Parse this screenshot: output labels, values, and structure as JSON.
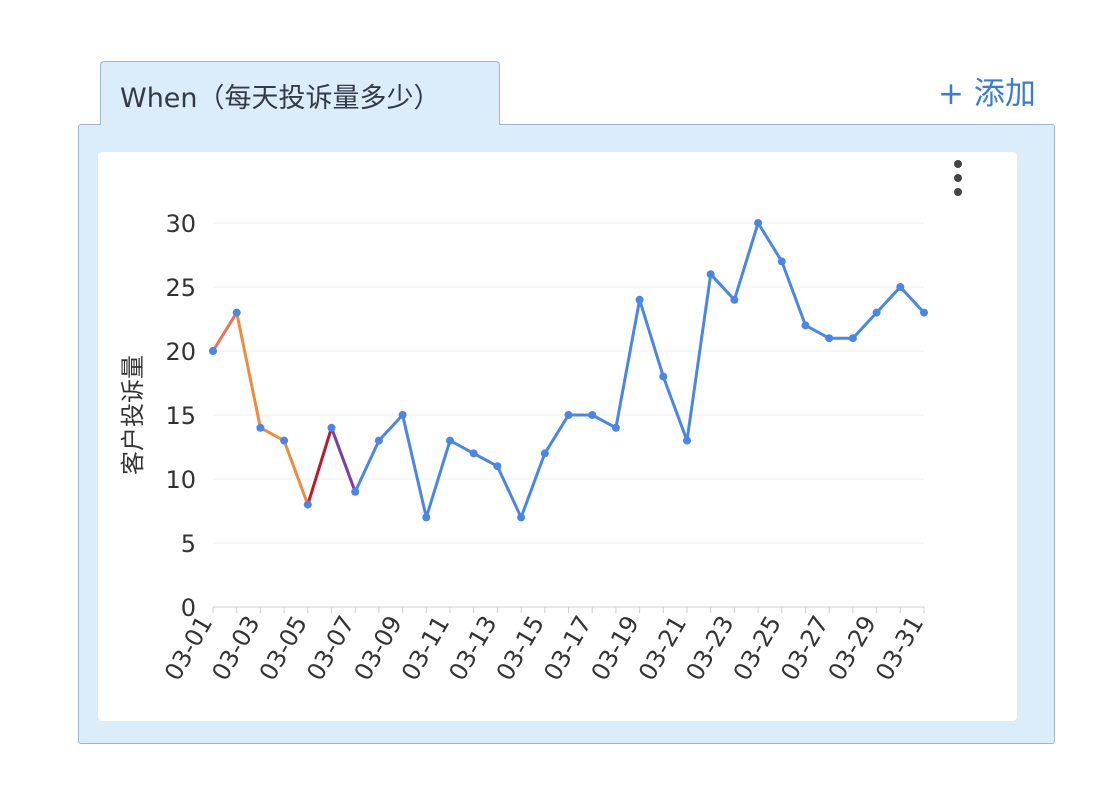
{
  "tab": {
    "label": "When（每天投诉量多少）"
  },
  "toolbar": {
    "add_label": "+ 添加"
  },
  "menu": {
    "icon": "more-vertical-icon"
  },
  "chart_data": {
    "type": "line",
    "title": "",
    "xlabel": "",
    "ylabel": "客户投诉量",
    "ylim": [
      0,
      30
    ],
    "yticks": [
      0,
      5,
      10,
      15,
      20,
      25,
      30
    ],
    "grid": true,
    "x": [
      "03-01",
      "03-02",
      "03-03",
      "03-04",
      "03-05",
      "03-06",
      "03-07",
      "03-08",
      "03-09",
      "03-10",
      "03-11",
      "03-12",
      "03-13",
      "03-14",
      "03-15",
      "03-16",
      "03-17",
      "03-18",
      "03-19",
      "03-20",
      "03-21",
      "03-22",
      "03-23",
      "03-24",
      "03-25",
      "03-26",
      "03-27",
      "03-28",
      "03-29",
      "03-30",
      "03-31"
    ],
    "xticks_shown": [
      "03-01",
      "03-03",
      "03-05",
      "03-07",
      "03-09",
      "03-11",
      "03-13",
      "03-15",
      "03-17",
      "03-19",
      "03-21",
      "03-23",
      "03-25",
      "03-27",
      "03-29",
      "03-31"
    ],
    "series": [
      {
        "values": [
          20,
          23,
          14,
          13,
          8,
          14,
          9,
          13,
          15,
          7,
          13,
          12,
          11,
          7,
          12,
          15,
          15,
          14,
          24,
          18,
          13,
          26,
          24,
          30,
          27,
          22,
          21,
          21,
          23,
          25,
          23
        ]
      }
    ],
    "colors": {
      "line": "#4a86e8",
      "highlight": [
        "#e8735a",
        "#f08a3c",
        "#c0182a",
        "#7b3fa0"
      ],
      "grid": "#ececec",
      "axis": "#333333"
    }
  }
}
